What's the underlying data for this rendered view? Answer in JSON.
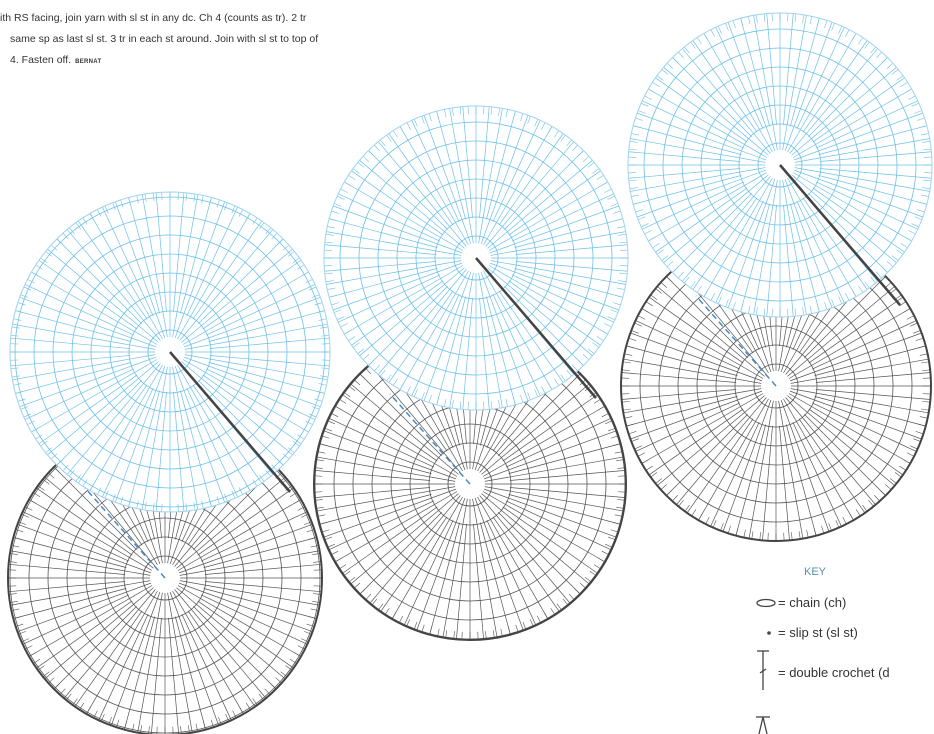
{
  "instructions": {
    "lines": [
      "ith RS facing, join yarn with sl st in any dc. Ch 4 (counts as tr). 2 tr",
      "same sp as last sl st. 3 tr in each st around. Join with sl st to top of",
      "4. Fasten off."
    ],
    "brand": "BERNAT"
  },
  "key": {
    "title": "KEY",
    "items": [
      "= chain (ch)",
      "= slip st (sl st)",
      "= double crochet (d"
    ]
  }
}
